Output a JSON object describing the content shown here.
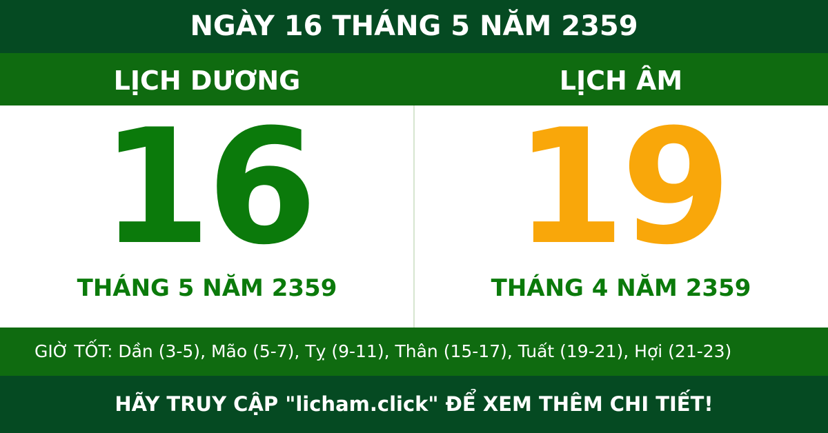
{
  "title": "NGÀY 16 THÁNG 5 NĂM 2359",
  "solar": {
    "label": "LỊCH DƯƠNG",
    "day": "16",
    "month_year": "THÁNG 5 NĂM 2359"
  },
  "lunar": {
    "label": "LỊCH ÂM",
    "day": "19",
    "month_year": "THÁNG 4 NĂM 2359"
  },
  "good_hours": "GIỜ TỐT: Dần (3-5), Mão (5-7), Tỵ (9-11), Thân (15-17), Tuất (19-21), Hợi (21-23)",
  "footer": "HÃY TRUY CẬP \"licham.click\" ĐỂ XEM THÊM CHI TIẾT!"
}
